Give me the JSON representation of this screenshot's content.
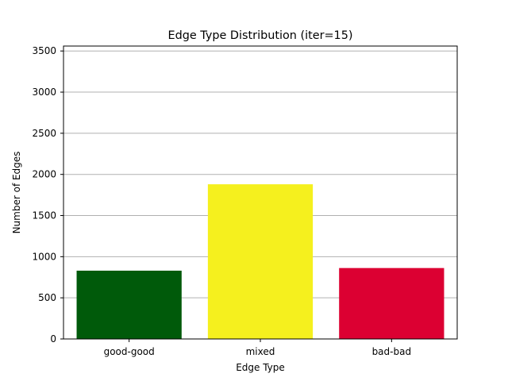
{
  "chart_data": {
    "type": "bar",
    "title": "Edge Type Distribution (iter=15)",
    "xlabel": "Edge Type",
    "ylabel": "Number of Edges",
    "categories": [
      "good-good",
      "mixed",
      "bad-bad"
    ],
    "values": [
      830,
      1880,
      862
    ],
    "colors": [
      "#005a0a",
      "#f5f01e",
      "#dc0032"
    ],
    "ylim": [
      0,
      3560
    ],
    "yticks": [
      0,
      500,
      1000,
      1500,
      2000,
      2500,
      3000,
      3500
    ],
    "grid": {
      "axis": "y",
      "color": "#b0b0b0"
    },
    "legend": "none"
  }
}
